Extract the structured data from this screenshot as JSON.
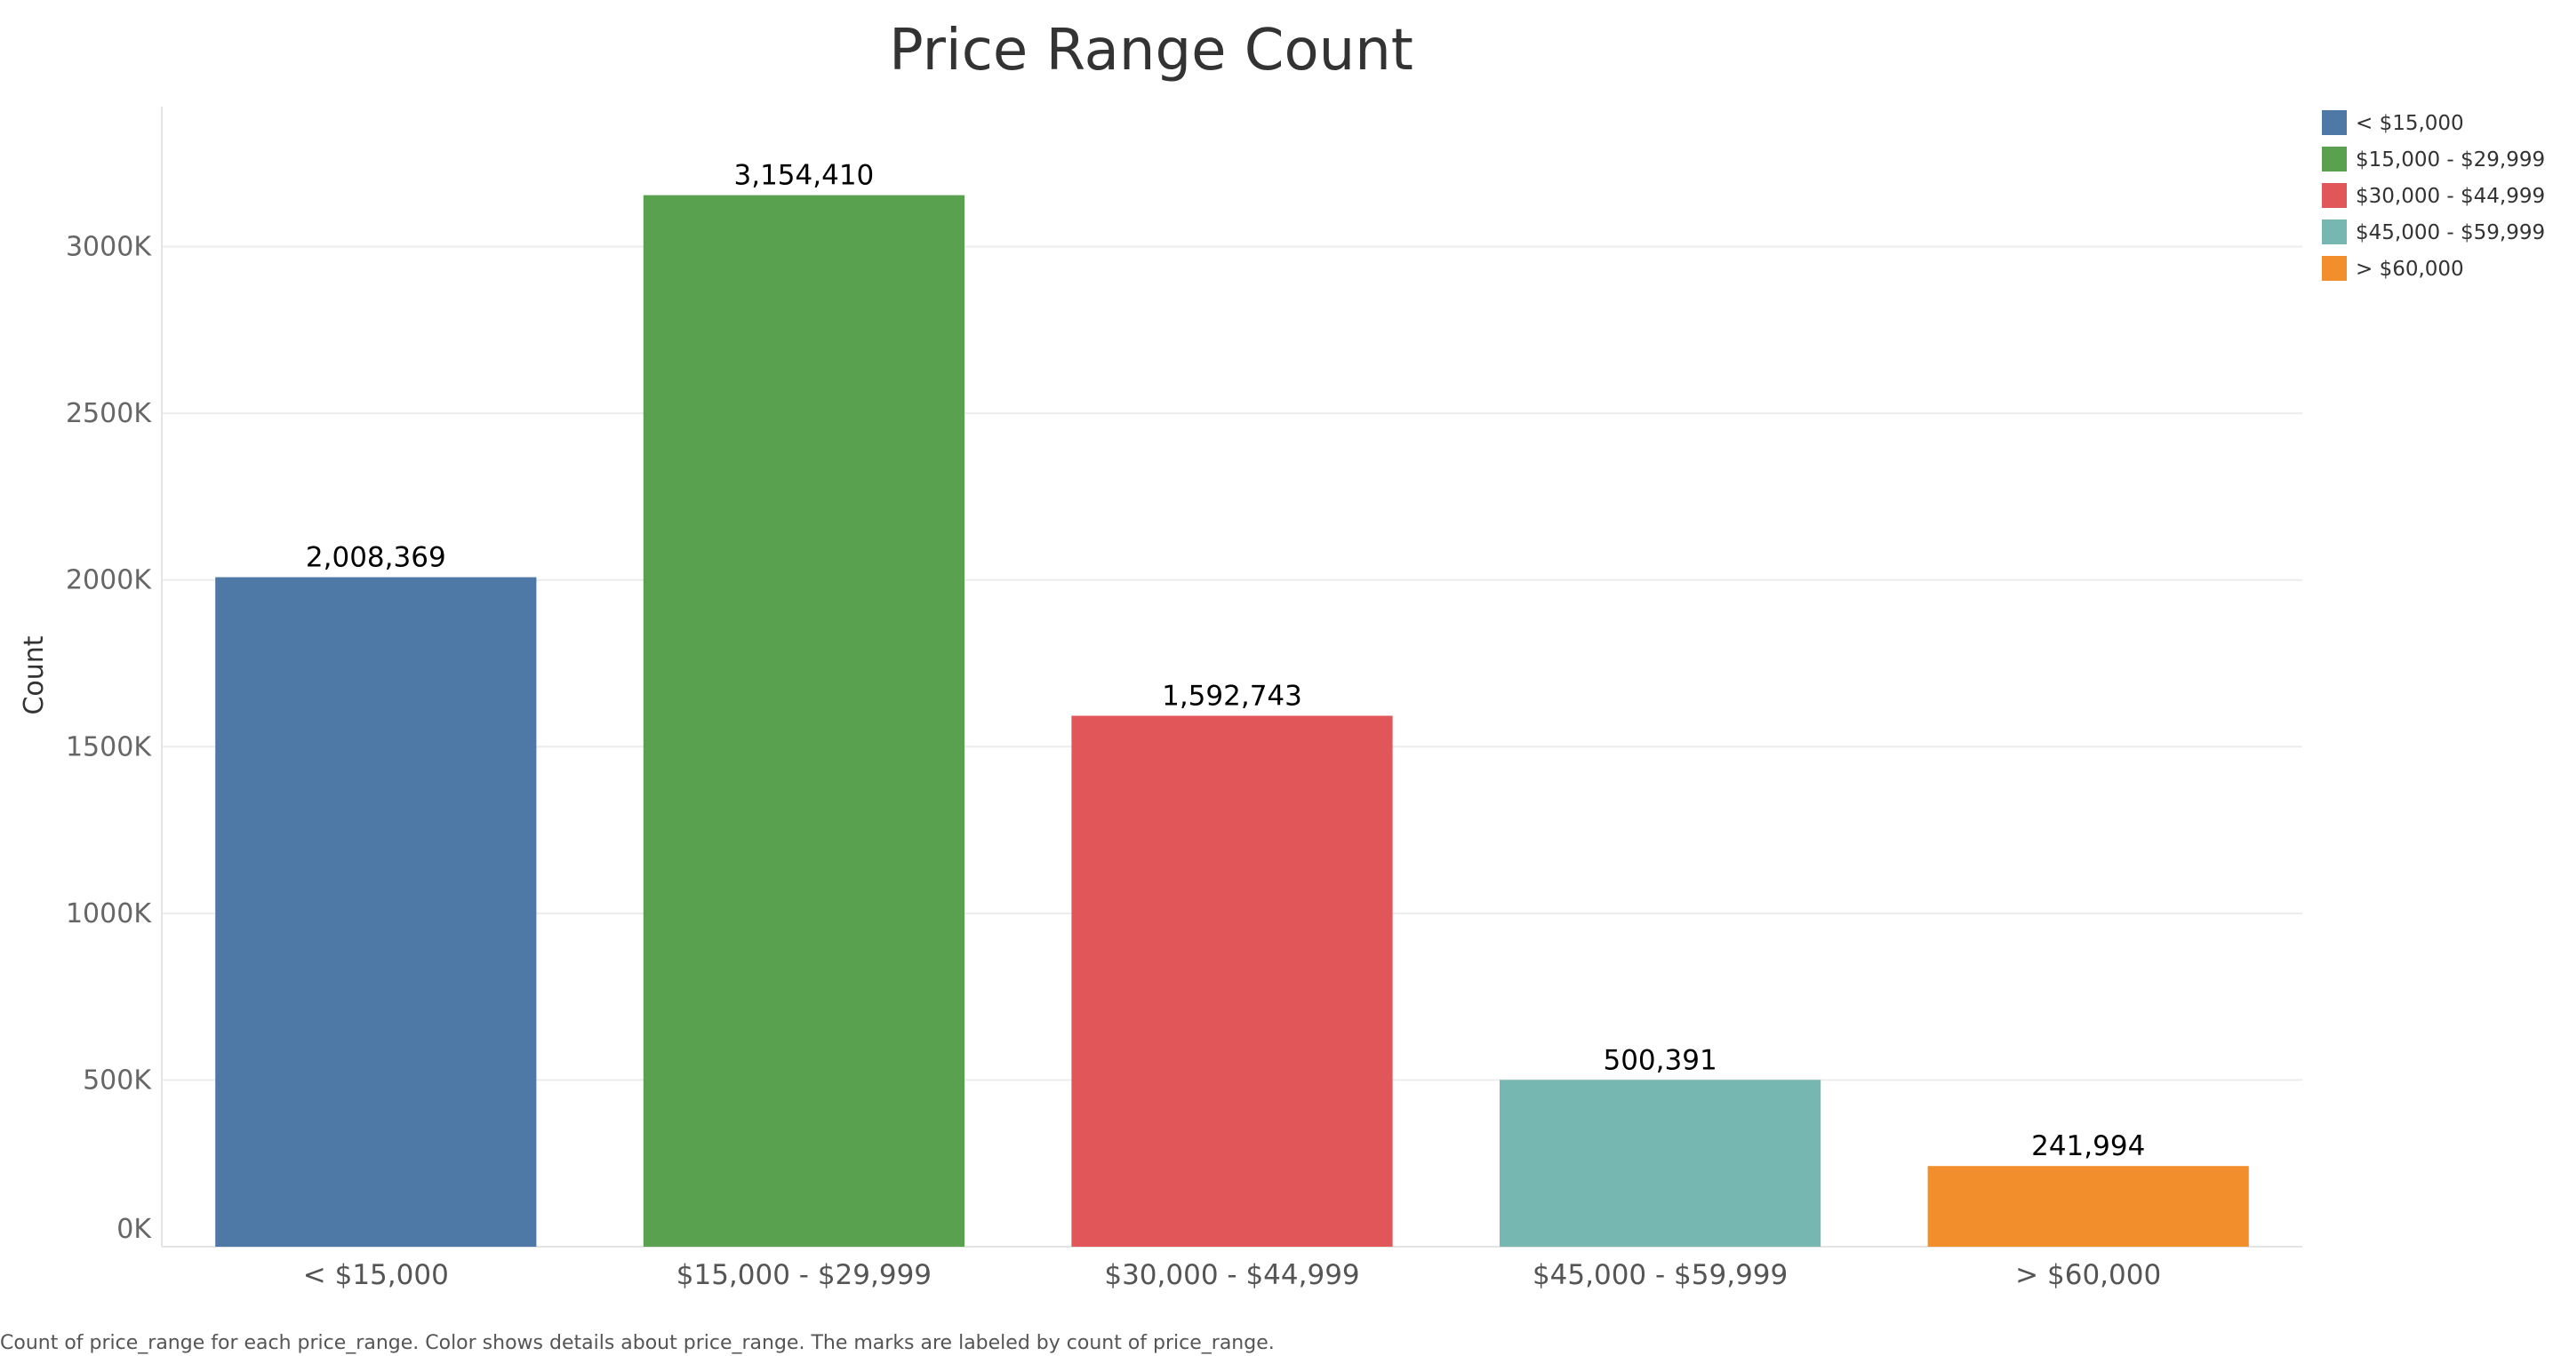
{
  "chart_data": {
    "type": "bar",
    "title": "Price Range Count",
    "xlabel": "",
    "ylabel": "Count",
    "categories": [
      "< $15,000",
      "$15,000 - $29,999",
      "$30,000 - $44,999",
      "$45,000 - $59,999",
      "> $60,000"
    ],
    "values": [
      2008369,
      3154410,
      1592743,
      500391,
      241994
    ],
    "data_labels": [
      "2,008,369",
      "3,154,410",
      "1,592,743",
      "500,391",
      "241,994"
    ],
    "colors": [
      "#4e79a7",
      "#59a14f",
      "#e15759",
      "#76b7b2",
      "#f28e2b"
    ],
    "ylim": [
      0,
      3420000
    ],
    "yticks": [
      0,
      500000,
      1000000,
      1500000,
      2000000,
      2500000,
      3000000
    ],
    "ytick_labels": [
      "0K",
      "500K",
      "1000K",
      "1500K",
      "2000K",
      "2500K",
      "3000K"
    ],
    "grid": true,
    "legend": {
      "position": "top-right",
      "entries": [
        "< $15,000",
        "$15,000 - $29,999",
        "$30,000 - $44,999",
        "$45,000 - $59,999",
        "> $60,000"
      ]
    },
    "caption": "Count of price_range for each price_range.  Color shows details about price_range.  The marks are labeled by count of price_range."
  }
}
